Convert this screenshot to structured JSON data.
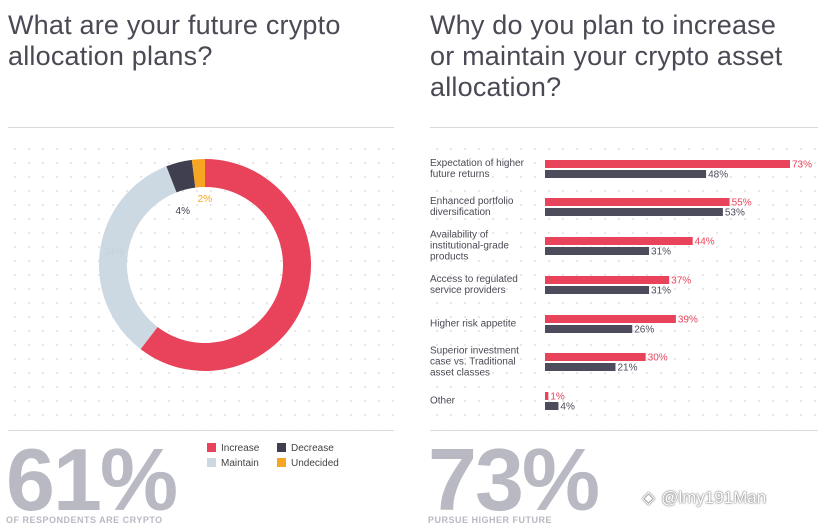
{
  "left": {
    "title_line1": "What are your future crypto",
    "title_line2": "allocation plans?",
    "big_number": "61%",
    "footnote": "OF RESPONDENTS ARE CRYPTO",
    "legend": [
      {
        "label": "Increase",
        "color": "#e8435a"
      },
      {
        "label": "Decrease",
        "color": "#3f3f4f"
      },
      {
        "label": "Maintain",
        "color": "#ccd8e2"
      },
      {
        "label": "Undecided",
        "color": "#f6a623"
      }
    ]
  },
  "right": {
    "title_line1": "Why do you plan to increase",
    "title_line2": "or maintain your crypto asset",
    "title_line3": "allocation?",
    "big_number": "73%",
    "footnote": "PURSUE HIGHER FUTURE"
  },
  "watermark": {
    "text": "@lmy191Man"
  },
  "chart_data": [
    {
      "type": "pie",
      "variant": "donut",
      "title": "What are your future crypto allocation plans?",
      "categories": [
        "Increase",
        "Maintain",
        "Decrease",
        "Undecided"
      ],
      "values": [
        61,
        34,
        4,
        2
      ],
      "labels": [
        "61%",
        "34%",
        "4%",
        "2%"
      ],
      "colors": [
        "#e8435a",
        "#ccd8e2",
        "#3f3f4f",
        "#f6a623"
      ],
      "label_colors": [
        "#e8435a",
        "#ccd8e2",
        "#3f3f4f",
        "#f6a623"
      ],
      "legend_position": "bottom"
    },
    {
      "type": "bar",
      "orientation": "horizontal",
      "title": "Why do you plan to increase or maintain your crypto asset allocation?",
      "categories": [
        [
          "Expectation of higher",
          "future returns"
        ],
        [
          "Enhanced portfolio",
          "diversification"
        ],
        [
          "Availability of",
          "institutional-grade",
          "products"
        ],
        [
          "Access to regulated",
          "service providers"
        ],
        [
          "Higher risk appetite"
        ],
        [
          "Superior investment",
          "case vs. Traditional",
          "asset classes"
        ],
        [
          "Other"
        ]
      ],
      "series": [
        {
          "values": [
            73,
            55,
            44,
            37,
            39,
            30,
            1
          ],
          "labels": [
            "73%",
            "55%",
            "44%",
            "37%",
            "39%",
            "30%",
            "1%"
          ],
          "color": "#e8435a"
        },
        {
          "values": [
            48,
            53,
            31,
            31,
            26,
            21,
            4
          ],
          "labels": [
            "48%",
            "53%",
            "31%",
            "31%",
            "26%",
            "21%",
            "4%"
          ],
          "color": "#4c4c5c"
        }
      ],
      "xlim": [
        0,
        73
      ]
    }
  ]
}
